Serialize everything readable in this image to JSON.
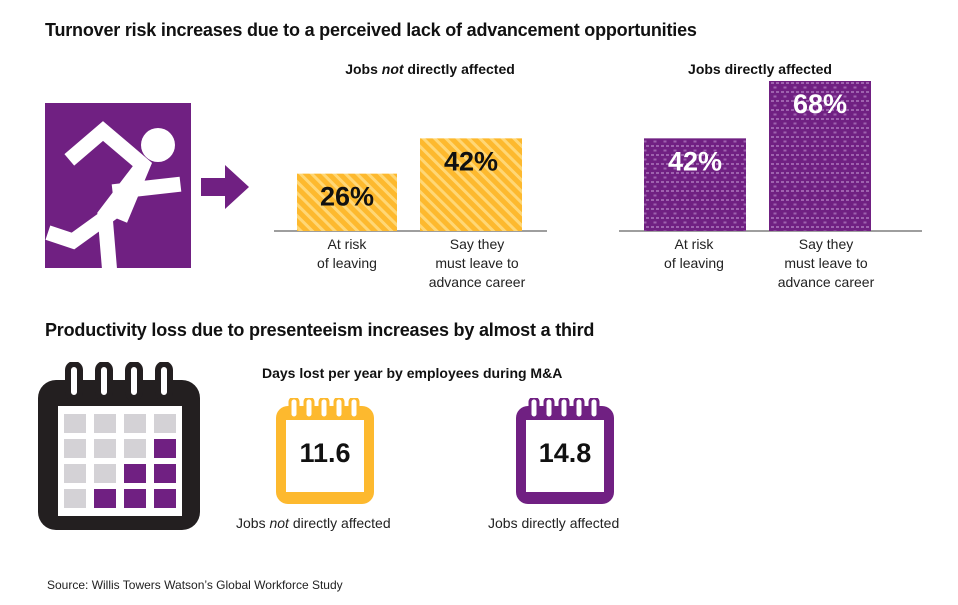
{
  "section1": {
    "title": "Turnover risk increases due to a perceived lack of advancement opportunities",
    "icon": "running-person-icon"
  },
  "section2": {
    "title": "Productivity loss due to presenteeism increases by almost a third",
    "subtitle": "Days lost per year by employees during M&A",
    "icon": "calendar-icon",
    "items": [
      {
        "label": "Jobs not directly affected",
        "value": "11.6",
        "color": "#FDB92E"
      },
      {
        "label": "Jobs directly affected",
        "value": "14.8",
        "color": "#702082"
      }
    ]
  },
  "source": "Source: Willis Towers  Watson’s Global Workforce Study",
  "colors": {
    "purple": "#702082",
    "orange": "#FDB92E",
    "axis": "#7f7f7f"
  },
  "chart_data": [
    {
      "type": "bar",
      "title_pre": "Jobs ",
      "title_em": "not",
      "title_post": " directly affected",
      "categories": [
        "At risk\nof leaving",
        "Say they\nmust leave to\nadvance career"
      ],
      "values": [
        26,
        42
      ],
      "unit": "%",
      "color": "#FDB92E"
    },
    {
      "type": "bar",
      "title": "Jobs directly affected",
      "categories": [
        "At risk\nof leaving",
        "Say they\nmust leave to\nadvance career"
      ],
      "values": [
        42,
        68
      ],
      "unit": "%",
      "color": "#702082"
    }
  ]
}
